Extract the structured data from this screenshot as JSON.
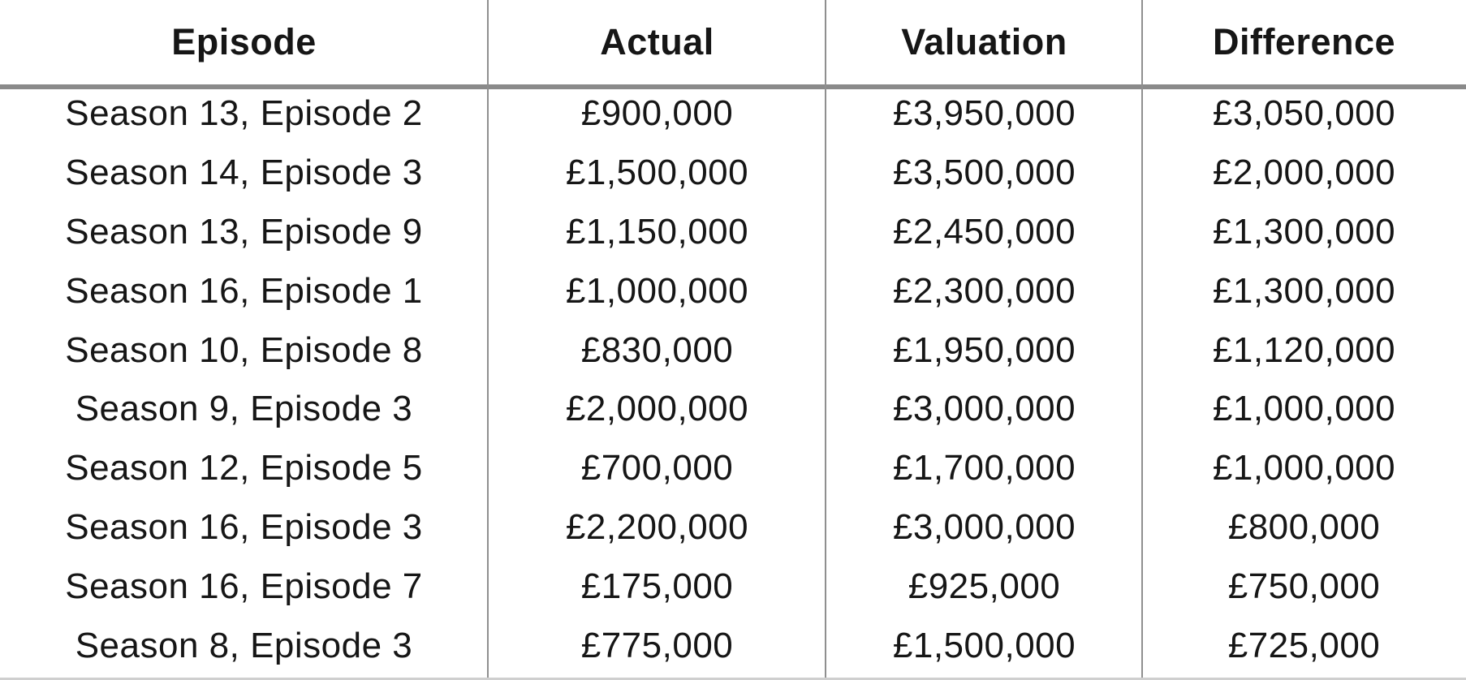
{
  "chart_data": {
    "type": "table",
    "columns": [
      {
        "id": "episode",
        "label": "Episode"
      },
      {
        "id": "actual",
        "label": "Actual"
      },
      {
        "id": "valuation",
        "label": "Valuation"
      },
      {
        "id": "difference",
        "label": "Difference"
      }
    ],
    "rows": [
      {
        "episode": "Season 13, Episode 2",
        "actual": "£900,000",
        "valuation": "£3,950,000",
        "difference": "£3,050,000"
      },
      {
        "episode": "Season 14, Episode 3",
        "actual": "£1,500,000",
        "valuation": "£3,500,000",
        "difference": "£2,000,000"
      },
      {
        "episode": "Season 13, Episode 9",
        "actual": "£1,150,000",
        "valuation": "£2,450,000",
        "difference": "£1,300,000"
      },
      {
        "episode": "Season 16, Episode 1",
        "actual": "£1,000,000",
        "valuation": "£2,300,000",
        "difference": "£1,300,000"
      },
      {
        "episode": "Season 10, Episode 8",
        "actual": "£830,000",
        "valuation": "£1,950,000",
        "difference": "£1,120,000"
      },
      {
        "episode": "Season 9, Episode 3",
        "actual": "£2,000,000",
        "valuation": "£3,000,000",
        "difference": "£1,000,000"
      },
      {
        "episode": "Season 12, Episode 5",
        "actual": "£700,000",
        "valuation": "£1,700,000",
        "difference": "£1,000,000"
      },
      {
        "episode": "Season 16, Episode 3",
        "actual": "£2,200,000",
        "valuation": "£3,000,000",
        "difference": "£800,000"
      },
      {
        "episode": "Season 16, Episode 7",
        "actual": "£175,000",
        "valuation": "£925,000",
        "difference": "£750,000"
      },
      {
        "episode": "Season 8, Episode 3",
        "actual": "£775,000",
        "valuation": "£1,500,000",
        "difference": "£725,000"
      }
    ],
    "layout": {
      "grid": "column dividers only, single rule under header",
      "legend": "none",
      "alignment": "center"
    }
  },
  "colors": {
    "background": "#ffffff",
    "text": "#161616",
    "header_rule": "#8a8a8a",
    "column_rule": "#8f8f8f",
    "bottom_rule": "#cfcfcf"
  }
}
